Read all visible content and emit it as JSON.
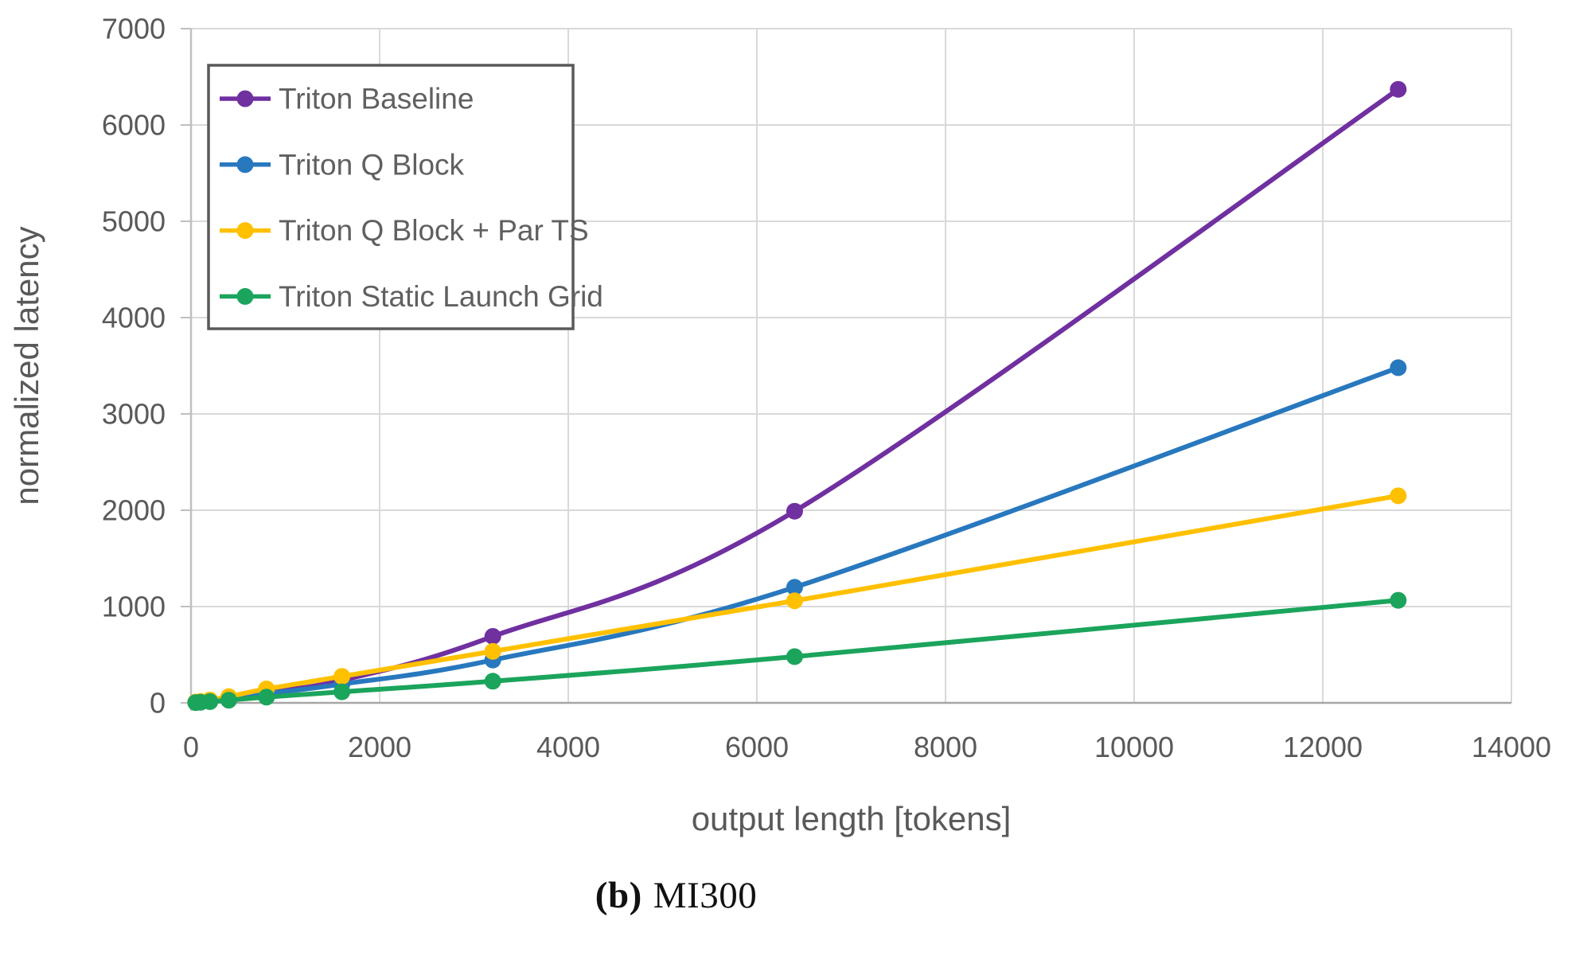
{
  "figure": {
    "caption": {
      "label": "(b)",
      "text": "MI300"
    }
  },
  "chart_data": {
    "type": "line",
    "title": "",
    "xlabel": "output length [tokens]",
    "ylabel": "normalized latency",
    "xlim": [
      0,
      14000
    ],
    "ylim": [
      0,
      7000
    ],
    "xticks": [
      0,
      2000,
      4000,
      6000,
      8000,
      10000,
      12000,
      14000
    ],
    "yticks": [
      0,
      1000,
      2000,
      3000,
      4000,
      5000,
      6000,
      7000
    ],
    "grid": true,
    "legend_position": "top-left",
    "marker": "circle",
    "smooth": true,
    "x": [
      50,
      100,
      200,
      400,
      800,
      1600,
      3200,
      6400,
      12800
    ],
    "series": [
      {
        "name": "Triton Baseline",
        "color": "#7030A0",
        "values": [
          5,
          12,
          25,
          55,
          115,
          235,
          690,
          1990,
          6370
        ]
      },
      {
        "name": "Triton Q Block",
        "color": "#2878BE",
        "values": [
          5,
          10,
          20,
          45,
          95,
          195,
          445,
          1200,
          3480
        ]
      },
      {
        "name": "Triton Q Block + Par TS",
        "color": "#FFC000",
        "values": [
          8,
          15,
          30,
          65,
          145,
          275,
          535,
          1060,
          2150
        ]
      },
      {
        "name": "Triton Static Launch Grid",
        "color": "#1BA45C",
        "values": [
          3,
          6,
          13,
          28,
          60,
          115,
          225,
          480,
          1065
        ]
      }
    ]
  },
  "colors": {
    "background": "#FFFFFF",
    "grid": "#D9D9D9",
    "axis_line": "#BFBFBF",
    "axis_bottom": "#A6A6A6",
    "tick_text": "#595959",
    "axis_title_text": "#595959",
    "legend_text": "#606060",
    "legend_border": "#595959",
    "legend_background": "#FFFFFF"
  }
}
